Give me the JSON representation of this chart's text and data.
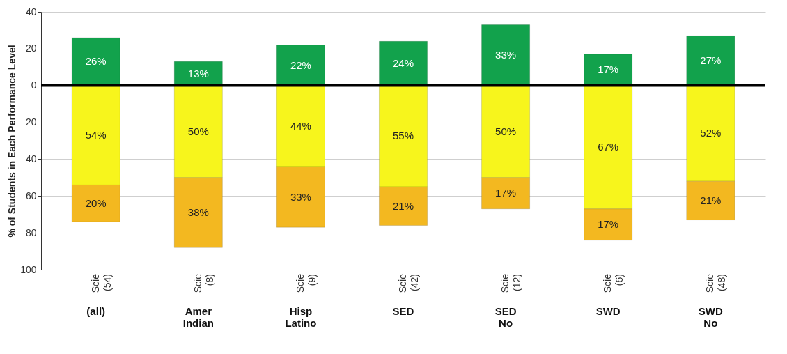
{
  "chart_data": {
    "type": "bar",
    "ylabel": "% of Students in Each Performance Level",
    "categories": [
      "(all)",
      "Amer Indian",
      "Hisp Latino",
      "SED",
      "SED No",
      "SWD",
      "SWD No"
    ],
    "annotations": [
      "Scie (54)",
      "Scie (8)",
      "Scie (9)",
      "Scie (42)",
      "Scie (12)",
      "Scie (6)",
      "Scie (48)"
    ],
    "series": [
      {
        "color": "#12a24c",
        "values": [
          26,
          13,
          22,
          24,
          33,
          17,
          27
        ],
        "base": [
          0,
          0,
          0,
          0,
          0,
          0,
          0
        ],
        "value_labels": [
          "26%",
          "13%",
          "22%",
          "24%",
          "33%",
          "17%",
          "27%"
        ]
      },
      {
        "color": "#f7f51c",
        "values": [
          54,
          50,
          44,
          55,
          50,
          67,
          52
        ],
        "base": [
          -54,
          -50,
          -44,
          -55,
          -50,
          -67,
          -52
        ],
        "value_labels": [
          "54%",
          "50%",
          "44%",
          "55%",
          "50%",
          "67%",
          "52%"
        ]
      },
      {
        "color": "#f3b820",
        "values": [
          20,
          38,
          33,
          21,
          17,
          17,
          21
        ],
        "base": [
          -74,
          -88,
          -77,
          -76,
          -67,
          -84,
          -73
        ],
        "value_labels": [
          "20%",
          "38%",
          "33%",
          "21%",
          "17%",
          "17%",
          "21%"
        ]
      }
    ],
    "ylim": [
      -100,
      40
    ],
    "yticks": [
      {
        "value": -100,
        "label": "100"
      },
      {
        "value": -80,
        "label": "80"
      },
      {
        "value": -60,
        "label": "60"
      },
      {
        "value": -40,
        "label": "40"
      },
      {
        "value": -20,
        "label": "20"
      },
      0,
      20,
      40
    ],
    "ref_lines": [
      {
        "axis": "y",
        "value": 0,
        "color": "#000000"
      }
    ],
    "grid": "y",
    "legend": false
  }
}
